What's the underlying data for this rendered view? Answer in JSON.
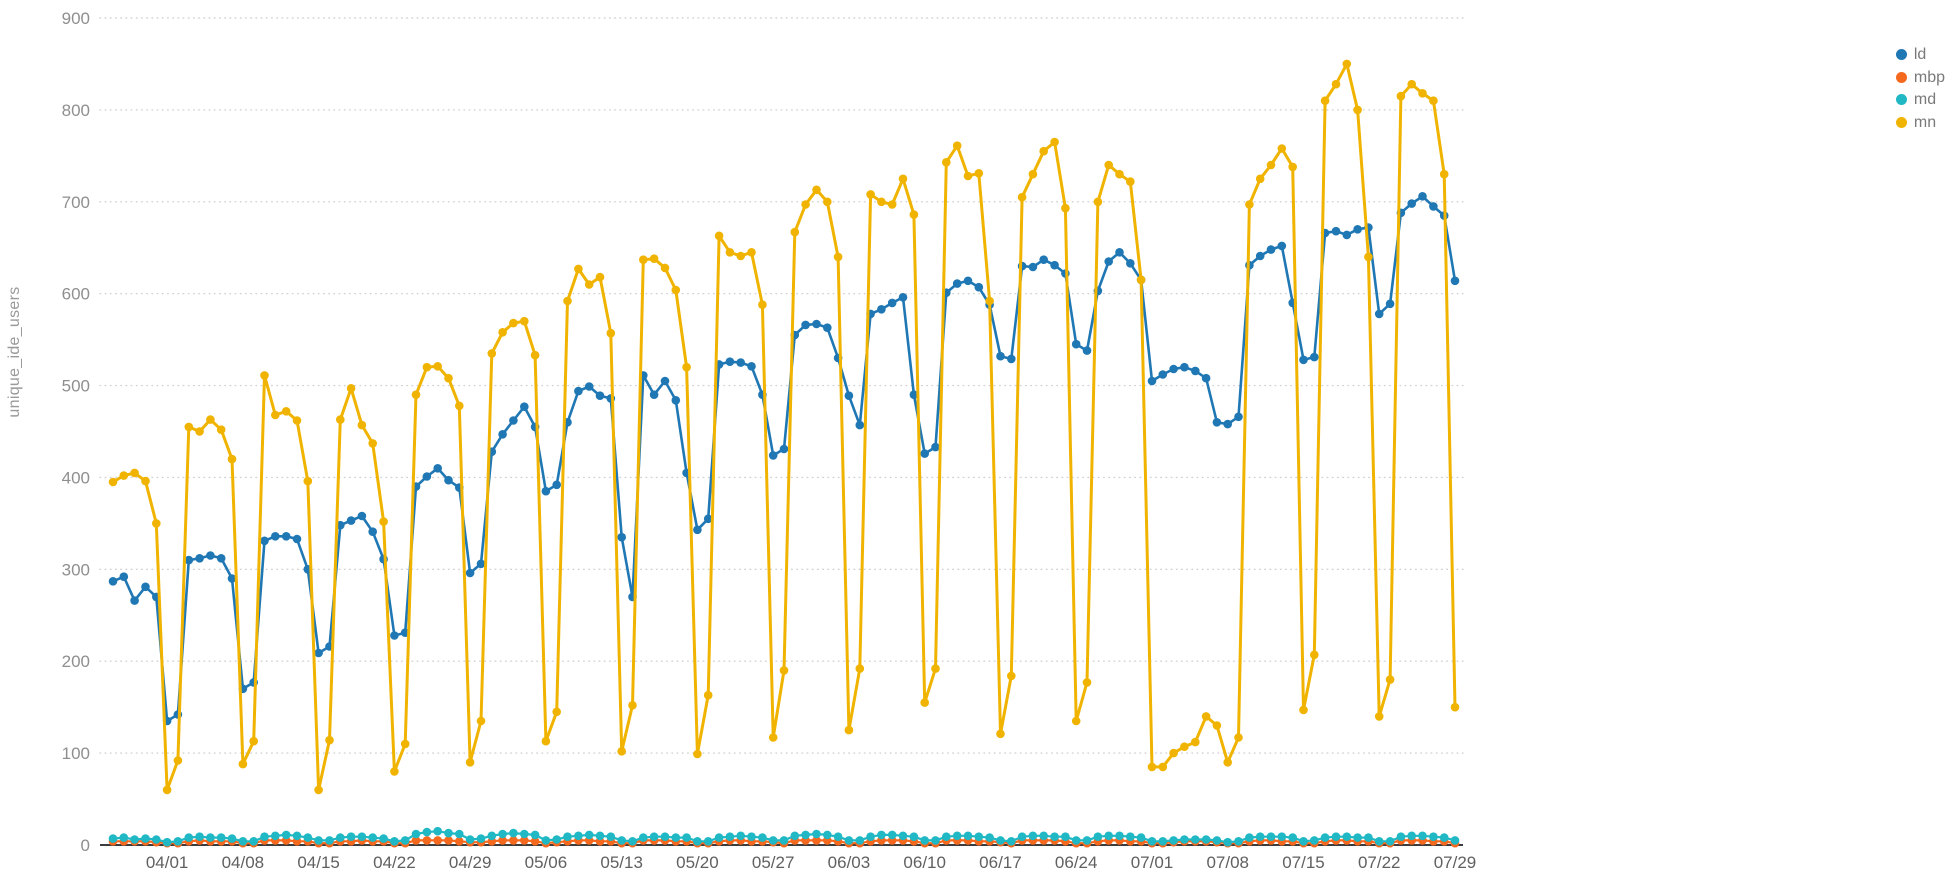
{
  "y_axis": {
    "title": "unique_ide_users",
    "tick_values": [
      0,
      100,
      200,
      300,
      400,
      500,
      600,
      700,
      800,
      900
    ],
    "tick_labels": [
      "0",
      "100",
      "200",
      "300",
      "400",
      "500",
      "600",
      "700",
      "800",
      "900"
    ]
  },
  "legend": {
    "items": [
      {
        "label": "ld",
        "color": "#1f77b4"
      },
      {
        "label": "mbp",
        "color": "#f4691e"
      },
      {
        "label": "md",
        "color": "#1fb8c4"
      },
      {
        "label": "mn",
        "color": "#f0b400"
      }
    ]
  },
  "chart_data": {
    "type": "line",
    "title": "",
    "ylabel": "unique_ide_users",
    "xlabel": "",
    "ylim": [
      0,
      900
    ],
    "grid": true,
    "grid_style": "dotted-horizontal",
    "legend_position": "top-right",
    "x_tick_labels": [
      "04/01",
      "04/08",
      "04/15",
      "04/22",
      "04/29",
      "05/06",
      "05/13",
      "05/20",
      "05/27",
      "06/03",
      "06/10",
      "06/17",
      "06/24",
      "07/01",
      "07/08",
      "07/15",
      "07/22",
      "07/29"
    ],
    "x": [
      "03/27",
      "03/28",
      "03/29",
      "03/30",
      "03/31",
      "04/01",
      "04/02",
      "04/03",
      "04/04",
      "04/05",
      "04/06",
      "04/07",
      "04/08",
      "04/09",
      "04/10",
      "04/11",
      "04/12",
      "04/13",
      "04/14",
      "04/15",
      "04/16",
      "04/17",
      "04/18",
      "04/19",
      "04/20",
      "04/21",
      "04/22",
      "04/23",
      "04/24",
      "04/25",
      "04/26",
      "04/27",
      "04/28",
      "04/29",
      "04/30",
      "05/01",
      "05/02",
      "05/03",
      "05/04",
      "05/05",
      "05/06",
      "05/07",
      "05/08",
      "05/09",
      "05/10",
      "05/11",
      "05/12",
      "05/13",
      "05/14",
      "05/15",
      "05/16",
      "05/17",
      "05/18",
      "05/19",
      "05/20",
      "05/21",
      "05/22",
      "05/23",
      "05/24",
      "05/25",
      "05/26",
      "05/27",
      "05/28",
      "05/29",
      "05/30",
      "05/31",
      "06/01",
      "06/02",
      "06/03",
      "06/04",
      "06/05",
      "06/06",
      "06/07",
      "06/08",
      "06/09",
      "06/10",
      "06/11",
      "06/12",
      "06/13",
      "06/14",
      "06/15",
      "06/16",
      "06/17",
      "06/18",
      "06/19",
      "06/20",
      "06/21",
      "06/22",
      "06/23",
      "06/24",
      "06/25",
      "06/26",
      "06/27",
      "06/28",
      "06/29",
      "06/30",
      "07/01",
      "07/02",
      "07/03",
      "07/04",
      "07/05",
      "07/06",
      "07/07",
      "07/08",
      "07/09",
      "07/10",
      "07/11",
      "07/12",
      "07/13",
      "07/14",
      "07/15",
      "07/16",
      "07/17",
      "07/18",
      "07/19",
      "07/20",
      "07/21",
      "07/22",
      "07/23",
      "07/24",
      "07/25",
      "07/26",
      "07/27",
      "07/28",
      "07/29"
    ],
    "series": [
      {
        "name": "ld",
        "color": "#1f77b4",
        "line_width": 2.6,
        "values": [
          287,
          292,
          266,
          281,
          270,
          135,
          142,
          310,
          312,
          315,
          312,
          290,
          170,
          177,
          331,
          336,
          336,
          333,
          300,
          209,
          216,
          348,
          353,
          358,
          341,
          311,
          228,
          231,
          390,
          401,
          410,
          397,
          389,
          296,
          306,
          428,
          447,
          462,
          477,
          455,
          385,
          392,
          460,
          494,
          499,
          489,
          486,
          335,
          270,
          511,
          490,
          505,
          484,
          405,
          343,
          355,
          523,
          526,
          525,
          521,
          490,
          424,
          431,
          555,
          566,
          567,
          563,
          530,
          489,
          457,
          578,
          583,
          590,
          596,
          490,
          426,
          433,
          601,
          611,
          614,
          607,
          588,
          532,
          529,
          630,
          629,
          637,
          631,
          622,
          545,
          538,
          603,
          635,
          645,
          633,
          615,
          505,
          512,
          518,
          520,
          516,
          508,
          460,
          458,
          466,
          631,
          641,
          648,
          652,
          590,
          528,
          531,
          666,
          668,
          664,
          670,
          672,
          578,
          589,
          688,
          698,
          706,
          695,
          685,
          614
        ]
      },
      {
        "name": "mbp",
        "color": "#f4691e",
        "line_width": 2.2,
        "values": [
          4,
          4,
          4,
          4,
          3,
          2,
          2,
          4,
          5,
          4,
          4,
          4,
          2,
          2,
          5,
          5,
          5,
          4,
          4,
          2,
          2,
          4,
          4,
          5,
          4,
          4,
          2,
          2,
          5,
          5,
          5,
          5,
          4,
          3,
          3,
          4,
          5,
          5,
          5,
          4,
          2,
          3,
          4,
          5,
          5,
          4,
          4,
          2,
          2,
          5,
          5,
          5,
          4,
          4,
          2,
          2,
          4,
          5,
          5,
          4,
          4,
          3,
          2,
          5,
          5,
          5,
          5,
          4,
          2,
          2,
          4,
          5,
          5,
          5,
          4,
          2,
          2,
          5,
          5,
          5,
          4,
          4,
          3,
          2,
          5,
          5,
          5,
          5,
          4,
          2,
          2,
          4,
          5,
          5,
          4,
          4,
          2,
          2,
          3,
          4,
          4,
          4,
          3,
          2,
          2,
          4,
          5,
          5,
          4,
          4,
          2,
          2,
          4,
          5,
          5,
          4,
          4,
          2,
          2,
          5,
          5,
          5,
          4,
          4,
          2
        ]
      },
      {
        "name": "md",
        "color": "#1fb8c4",
        "line_width": 2.2,
        "values": [
          7,
          8,
          6,
          7,
          6,
          3,
          4,
          8,
          9,
          8,
          8,
          7,
          4,
          4,
          9,
          10,
          11,
          10,
          8,
          5,
          5,
          8,
          9,
          9,
          8,
          7,
          4,
          5,
          12,
          14,
          15,
          13,
          12,
          6,
          7,
          10,
          12,
          13,
          12,
          11,
          5,
          6,
          9,
          10,
          11,
          10,
          9,
          5,
          4,
          8,
          9,
          9,
          8,
          8,
          4,
          4,
          8,
          9,
          10,
          9,
          8,
          5,
          5,
          10,
          11,
          12,
          11,
          9,
          5,
          5,
          9,
          11,
          11,
          10,
          9,
          5,
          5,
          9,
          10,
          10,
          9,
          8,
          5,
          4,
          9,
          10,
          10,
          9,
          9,
          5,
          5,
          9,
          10,
          10,
          9,
          8,
          4,
          4,
          5,
          6,
          6,
          6,
          5,
          3,
          4,
          8,
          9,
          9,
          9,
          8,
          4,
          5,
          8,
          9,
          9,
          8,
          8,
          4,
          4,
          9,
          10,
          10,
          9,
          8,
          5
        ]
      },
      {
        "name": "mn",
        "color": "#f0b400",
        "line_width": 3.0,
        "values": [
          395,
          402,
          405,
          396,
          350,
          60,
          92,
          455,
          450,
          463,
          452,
          420,
          88,
          113,
          511,
          468,
          472,
          462,
          396,
          60,
          114,
          463,
          497,
          457,
          437,
          352,
          80,
          110,
          490,
          520,
          521,
          508,
          478,
          90,
          135,
          535,
          558,
          568,
          570,
          533,
          113,
          145,
          592,
          627,
          610,
          618,
          557,
          102,
          152,
          637,
          638,
          628,
          604,
          520,
          99,
          163,
          663,
          645,
          641,
          645,
          588,
          117,
          190,
          667,
          697,
          713,
          700,
          640,
          125,
          192,
          708,
          700,
          697,
          725,
          686,
          155,
          192,
          743,
          761,
          728,
          731,
          592,
          121,
          184,
          705,
          730,
          755,
          765,
          693,
          135,
          177,
          700,
          740,
          730,
          722,
          615,
          85,
          85,
          100,
          107,
          112,
          140,
          130,
          90,
          117,
          697,
          725,
          740,
          758,
          738,
          147,
          207,
          810,
          828,
          850,
          800,
          640,
          140,
          180,
          815,
          828,
          818,
          810,
          730,
          150
        ]
      }
    ],
    "colors": {
      "grid_line": "#d2d2d2",
      "axis_line": "#3c3c3c",
      "y_tick_label": "#8f8f8f",
      "x_tick_label": "#606060"
    }
  }
}
